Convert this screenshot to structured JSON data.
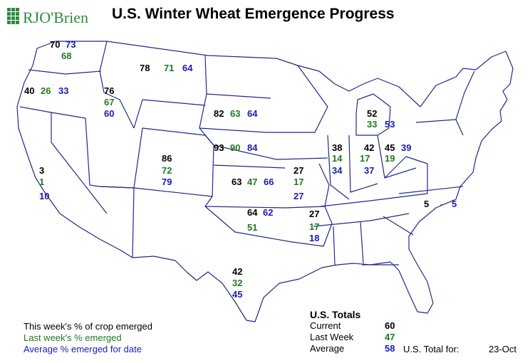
{
  "header": {
    "logo_text": "RJO'Brien",
    "title": "U.S. Winter Wheat Emergence Progress"
  },
  "colors": {
    "current": "#000000",
    "last_week": "#1e7a1e",
    "average": "#1a1ab4",
    "state_border": "#1f2a8a",
    "logo_green": "#2e8b3e"
  },
  "states": {
    "WA": {
      "current": "70",
      "last_week": "68",
      "average": "73"
    },
    "OR": {
      "current": "40",
      "last_week": "26",
      "average": "33"
    },
    "ID": {
      "current": "76",
      "last_week": "67",
      "average": "60"
    },
    "MT": {
      "current": "78",
      "last_week": "71",
      "average": "64"
    },
    "CA": {
      "current": "3",
      "last_week": "1",
      "average": "10"
    },
    "CO": {
      "current": "86",
      "last_week": "72",
      "average": "79"
    },
    "SD": {
      "current": "82",
      "last_week": "63",
      "average": "64"
    },
    "NE": {
      "current": "93",
      "last_week": "90",
      "average": "84"
    },
    "KS": {
      "current": "63",
      "last_week": "47",
      "average": "66"
    },
    "OK": {
      "current": "64",
      "last_week": "51",
      "average": "62"
    },
    "TX": {
      "current": "42",
      "last_week": "32",
      "average": "45"
    },
    "MO": {
      "current": "27",
      "last_week": "17",
      "average": "27"
    },
    "AR": {
      "current": "27",
      "last_week": "17",
      "average": "18"
    },
    "IL": {
      "current": "38",
      "last_week": "14",
      "average": "34"
    },
    "IN": {
      "current": "42",
      "last_week": "17",
      "average": "37"
    },
    "OH": {
      "current": "45",
      "last_week": "19",
      "average": "39"
    },
    "MI": {
      "current": "52",
      "last_week": "33",
      "average": "53"
    },
    "NC": {
      "current": "5",
      "last_week": "-",
      "average": "5"
    }
  },
  "legend": {
    "current": "This week's % of crop emerged",
    "last_week": "Last week's % emerged",
    "average": "Average % emerged for date"
  },
  "totals": {
    "heading": "U.S. Totals",
    "current_label": "Current",
    "current_value": "60",
    "last_week_label": "Last Week",
    "last_week_value": "47",
    "average_label": "Average",
    "average_value": "58",
    "total_for_label": "U.S. Total for:",
    "date": "23-Oct"
  }
}
